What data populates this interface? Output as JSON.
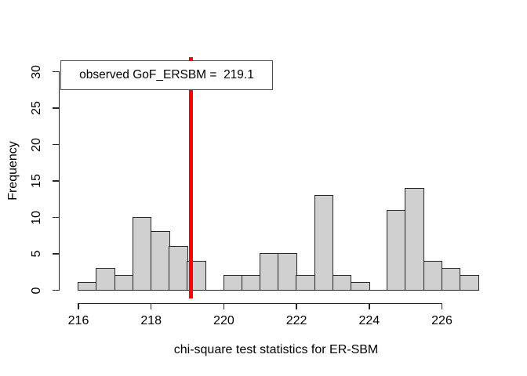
{
  "chart_data": {
    "type": "bar",
    "subtype": "histogram",
    "title": "",
    "xlabel": "chi-square test statistics for ER-SBM",
    "ylabel": "Frequency",
    "bins": {
      "start": 216.0,
      "width": 0.5,
      "counts": [
        1,
        3,
        2,
        10,
        8,
        6,
        4,
        0,
        2,
        2,
        5,
        5,
        2,
        13,
        2,
        1,
        0,
        11,
        14,
        4,
        3,
        2
      ]
    },
    "x_ticks": [
      216,
      218,
      220,
      222,
      224,
      226
    ],
    "y_ticks": [
      0,
      5,
      10,
      15,
      20,
      25,
      30
    ],
    "xlim": [
      215.5,
      227.0
    ],
    "ylim": [
      0,
      30
    ],
    "grid": false,
    "legend_position": "top-left",
    "annotation": {
      "text": "observed GoF_ERSBM =  219.1",
      "vline_x": 219.1
    },
    "colors": {
      "background": "#ffffff",
      "bar_fill": "#d0d0d0",
      "bar_border": "#262626",
      "axis": "#262626",
      "text": "#000000",
      "vline": "#ff0000",
      "legend_border": "#4d4d4d"
    }
  }
}
